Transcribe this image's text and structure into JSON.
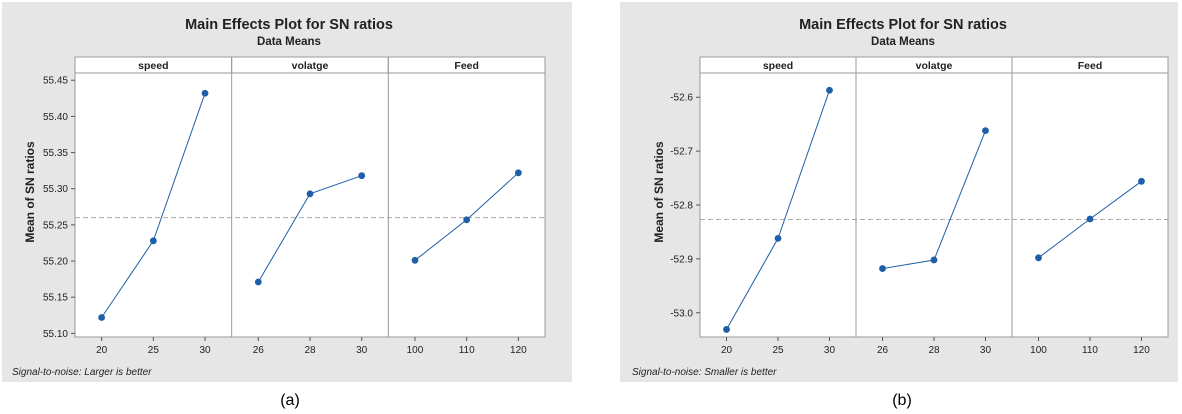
{
  "colors": {
    "panel_bg": "#e6e6e6",
    "plot_bg": "#ffffff",
    "strip_bg": "#ffffff",
    "series": "#1f5fa8",
    "mean_line": "#a9a9a9"
  },
  "chart_data": [
    {
      "type": "line",
      "title": "Main Effects Plot for SN ratios",
      "subtitle": "Data Means",
      "ylabel": "Mean of SN ratios",
      "footnote": "Signal-to-noise: Larger is better",
      "caption": "(a)",
      "ylim": [
        55.095,
        55.46
      ],
      "yticks": [
        "55.10",
        "55.15",
        "55.20",
        "55.25",
        "55.30",
        "55.35",
        "55.40",
        "55.45"
      ],
      "overall_mean": 55.26,
      "grid": false,
      "factors": [
        {
          "name": "speed",
          "x": [
            "20",
            "25",
            "30"
          ],
          "y": [
            55.122,
            55.228,
            55.432
          ]
        },
        {
          "name": "volatge",
          "x": [
            "26",
            "28",
            "30"
          ],
          "y": [
            55.171,
            55.293,
            55.318
          ]
        },
        {
          "name": "Feed",
          "x": [
            "100",
            "110",
            "120"
          ],
          "y": [
            55.201,
            55.257,
            55.322
          ]
        }
      ]
    },
    {
      "type": "line",
      "title": "Main Effects Plot for SN ratios",
      "subtitle": "Data Means",
      "ylabel": "Mean of SN ratios",
      "footnote": "Signal-to-noise: Smaller is better",
      "caption": "(b)",
      "ylim": [
        -53.045,
        -52.555
      ],
      "yticks": [
        "-53.0",
        "-52.9",
        "-52.8",
        "-52.7",
        "-52.6"
      ],
      "overall_mean": -52.827,
      "grid": false,
      "factors": [
        {
          "name": "speed",
          "x": [
            "20",
            "25",
            "30"
          ],
          "y": [
            -53.031,
            -52.862,
            -52.587
          ]
        },
        {
          "name": "volatge",
          "x": [
            "26",
            "28",
            "30"
          ],
          "y": [
            -52.918,
            -52.902,
            -52.662
          ]
        },
        {
          "name": "Feed",
          "x": [
            "100",
            "110",
            "120"
          ],
          "y": [
            -52.898,
            -52.826,
            -52.756
          ]
        }
      ]
    }
  ]
}
